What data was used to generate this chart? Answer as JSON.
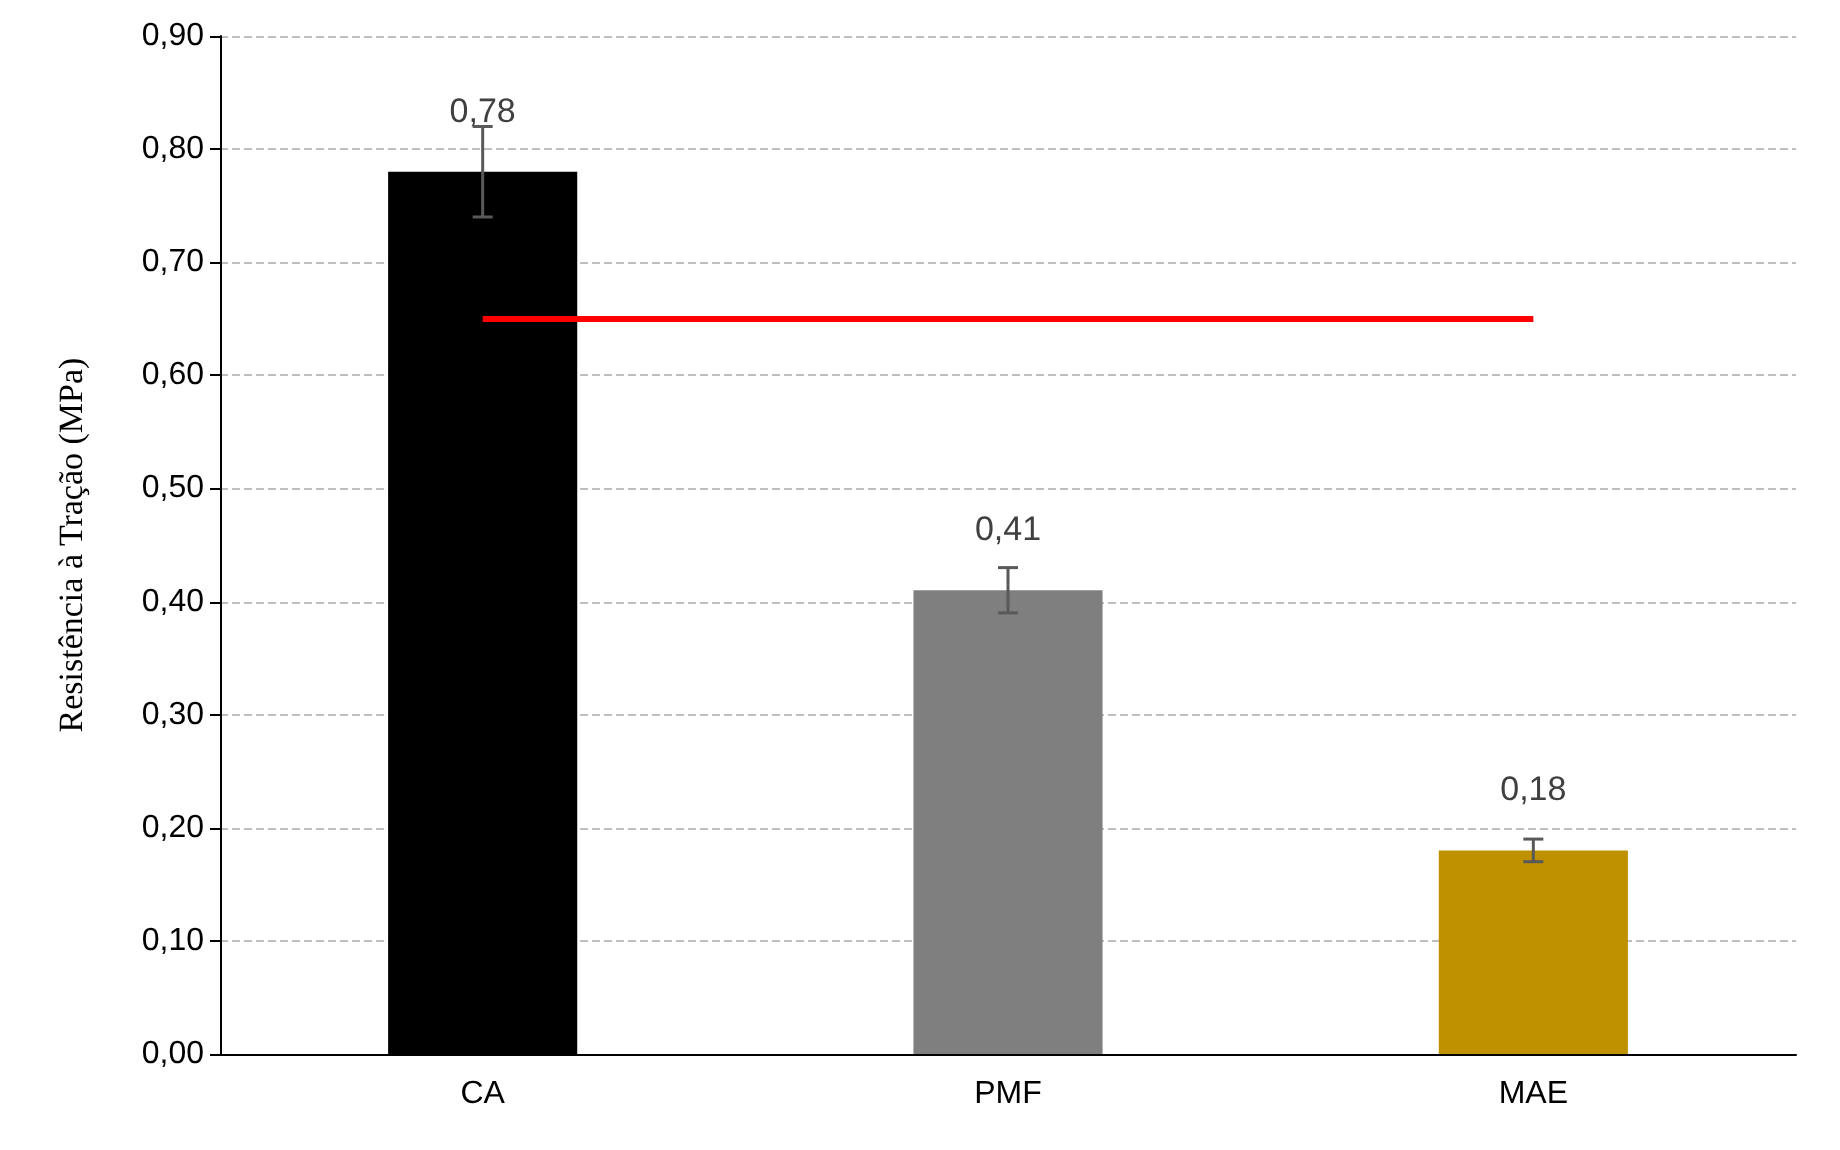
{
  "chart_data": {
    "type": "bar",
    "ylabel": "Resistência à Tração (MPa)",
    "categories": [
      "CA",
      "PMF",
      "MAE"
    ],
    "values": [
      0.78,
      0.41,
      0.18
    ],
    "colors": [
      "#000000",
      "#7f7f7f",
      "#bf9000"
    ],
    "errors": [
      0.04,
      0.02,
      0.01
    ],
    "value_labels": [
      "0,78",
      "0,41",
      "0,18"
    ],
    "ylim": [
      0,
      0.9
    ],
    "yticks": [
      {
        "value": 0,
        "label": "0,00"
      },
      {
        "value": 0.1,
        "label": "0,10"
      },
      {
        "value": 0.2,
        "label": "0,20"
      },
      {
        "value": 0.3,
        "label": "0,30"
      },
      {
        "value": 0.4,
        "label": "0,40"
      },
      {
        "value": 0.5,
        "label": "0,50"
      },
      {
        "value": 0.6,
        "label": "0,60"
      },
      {
        "value": 0.7,
        "label": "0,70"
      },
      {
        "value": 0.8,
        "label": "0,80"
      },
      {
        "value": 0.9,
        "label": "0,90"
      }
    ],
    "ref_lines": [
      {
        "axis": "y",
        "value": 0.65,
        "color": "#ff0000",
        "line_style": "solid"
      }
    ],
    "grid": "y"
  }
}
